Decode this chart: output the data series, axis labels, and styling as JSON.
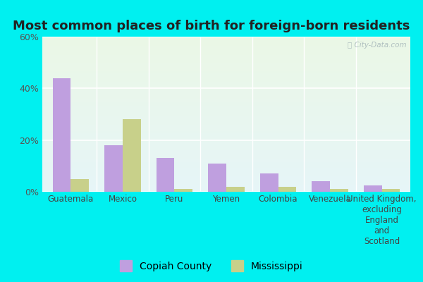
{
  "title": "Most common places of birth for foreign-born residents",
  "categories": [
    "Guatemala",
    "Mexico",
    "Peru",
    "Yemen",
    "Colombia",
    "Venezuela",
    "United Kingdom,\nexcluding\nEngland\nand\nScotland"
  ],
  "copiah_values": [
    44,
    18,
    13,
    11,
    7,
    4,
    2.5
  ],
  "mississippi_values": [
    5,
    28,
    1,
    2,
    2,
    1,
    1
  ],
  "copiah_color": "#bf9fdf",
  "mississippi_color": "#c8d08a",
  "ylim": [
    0,
    60
  ],
  "yticks": [
    0,
    20,
    40,
    60
  ],
  "ytick_labels": [
    "0%",
    "20%",
    "40%",
    "60%"
  ],
  "bar_width": 0.35,
  "outer_bg": "#00f0f0",
  "legend_labels": [
    "Copiah County",
    "Mississippi"
  ],
  "watermark": "ⓘ City-Data.com",
  "title_fontsize": 13,
  "axis_fontsize": 9,
  "legend_fontsize": 10
}
